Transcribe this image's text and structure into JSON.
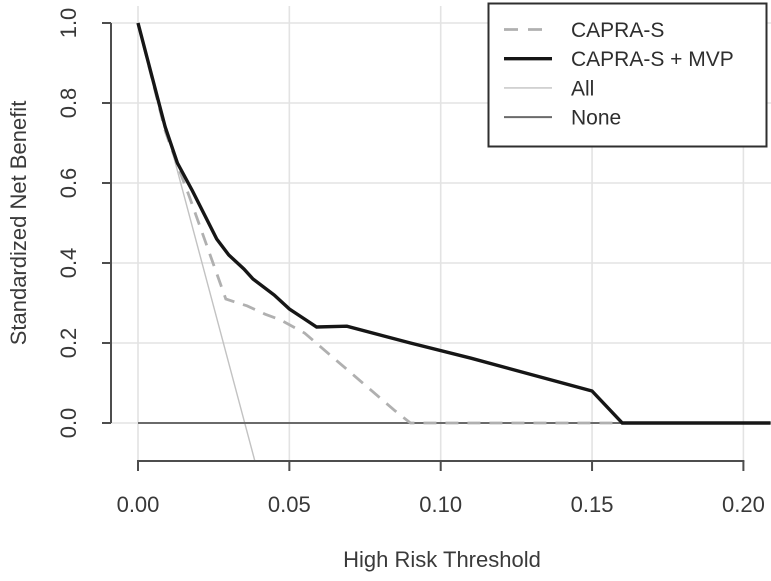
{
  "figure": {
    "background": "#ffffff",
    "type_note": "decision curve analysis plot"
  },
  "chart_data": {
    "type": "line",
    "title": "",
    "xlabel": "High Risk Threshold",
    "ylabel": "Standardized Net Benefit",
    "xlim": [
      0,
      0.209
    ],
    "ylim": [
      -0.095,
      1.0
    ],
    "grid": true,
    "x_ticks": {
      "values": [
        0.0,
        0.05,
        0.1,
        0.15,
        0.2
      ],
      "labels": [
        "0.00",
        "0.05",
        "0.10",
        "0.15",
        "0.20"
      ]
    },
    "y_ticks": {
      "values": [
        0.0,
        0.2,
        0.4,
        0.6,
        0.8,
        1.0
      ],
      "labels": [
        "0.0",
        "0.2",
        "0.4",
        "0.6",
        "0.8",
        "1.0"
      ]
    },
    "legend": {
      "position": "top-right",
      "entries": [
        "CAPRA-S",
        "CAPRA-S + MVP",
        "All",
        "None"
      ]
    },
    "series": [
      {
        "name": "CAPRA-S",
        "style": "dashed",
        "color": "#b0b0b0",
        "width": 2.8,
        "z": 3,
        "points": [
          [
            0.0,
            1.0
          ],
          [
            0.009,
            0.73
          ],
          [
            0.013,
            0.645
          ],
          [
            0.017,
            0.565
          ],
          [
            0.021,
            0.48
          ],
          [
            0.025,
            0.395
          ],
          [
            0.029,
            0.31
          ],
          [
            0.033,
            0.3
          ],
          [
            0.036,
            0.293
          ],
          [
            0.042,
            0.272
          ],
          [
            0.047,
            0.258
          ],
          [
            0.055,
            0.225
          ],
          [
            0.065,
            0.16
          ],
          [
            0.075,
            0.095
          ],
          [
            0.085,
            0.03
          ],
          [
            0.09,
            0.0
          ],
          [
            0.209,
            0.0
          ]
        ]
      },
      {
        "name": "CAPRA-S + MVP",
        "style": "solid",
        "color": "#161616",
        "width": 3.4,
        "z": 4,
        "points": [
          [
            0.0,
            1.0
          ],
          [
            0.009,
            0.74
          ],
          [
            0.013,
            0.65
          ],
          [
            0.018,
            0.58
          ],
          [
            0.022,
            0.52
          ],
          [
            0.026,
            0.46
          ],
          [
            0.03,
            0.42
          ],
          [
            0.035,
            0.385
          ],
          [
            0.038,
            0.36
          ],
          [
            0.045,
            0.32
          ],
          [
            0.05,
            0.285
          ],
          [
            0.055,
            0.26
          ],
          [
            0.059,
            0.24
          ],
          [
            0.069,
            0.242
          ],
          [
            0.09,
            0.2
          ],
          [
            0.11,
            0.162
          ],
          [
            0.13,
            0.121
          ],
          [
            0.15,
            0.08
          ],
          [
            0.16,
            0.0
          ],
          [
            0.209,
            0.0
          ]
        ]
      },
      {
        "name": "All",
        "style": "solid",
        "color": "#c2c2c2",
        "width": 1.4,
        "z": 1,
        "points": [
          [
            0.0,
            1.0
          ],
          [
            0.043,
            -0.22
          ]
        ]
      },
      {
        "name": "None",
        "style": "solid",
        "color": "#6a6a6a",
        "width": 2.0,
        "z": 2,
        "points": [
          [
            0.0,
            0.0
          ],
          [
            0.209,
            0.0
          ]
        ]
      }
    ],
    "style": {
      "grid_color": "#e3e3e3",
      "axis_color": "#4d4d4d",
      "legend_border_color": "#2f2f2f",
      "legend_background": "#ffffff",
      "dash_pattern": "13 9"
    }
  }
}
